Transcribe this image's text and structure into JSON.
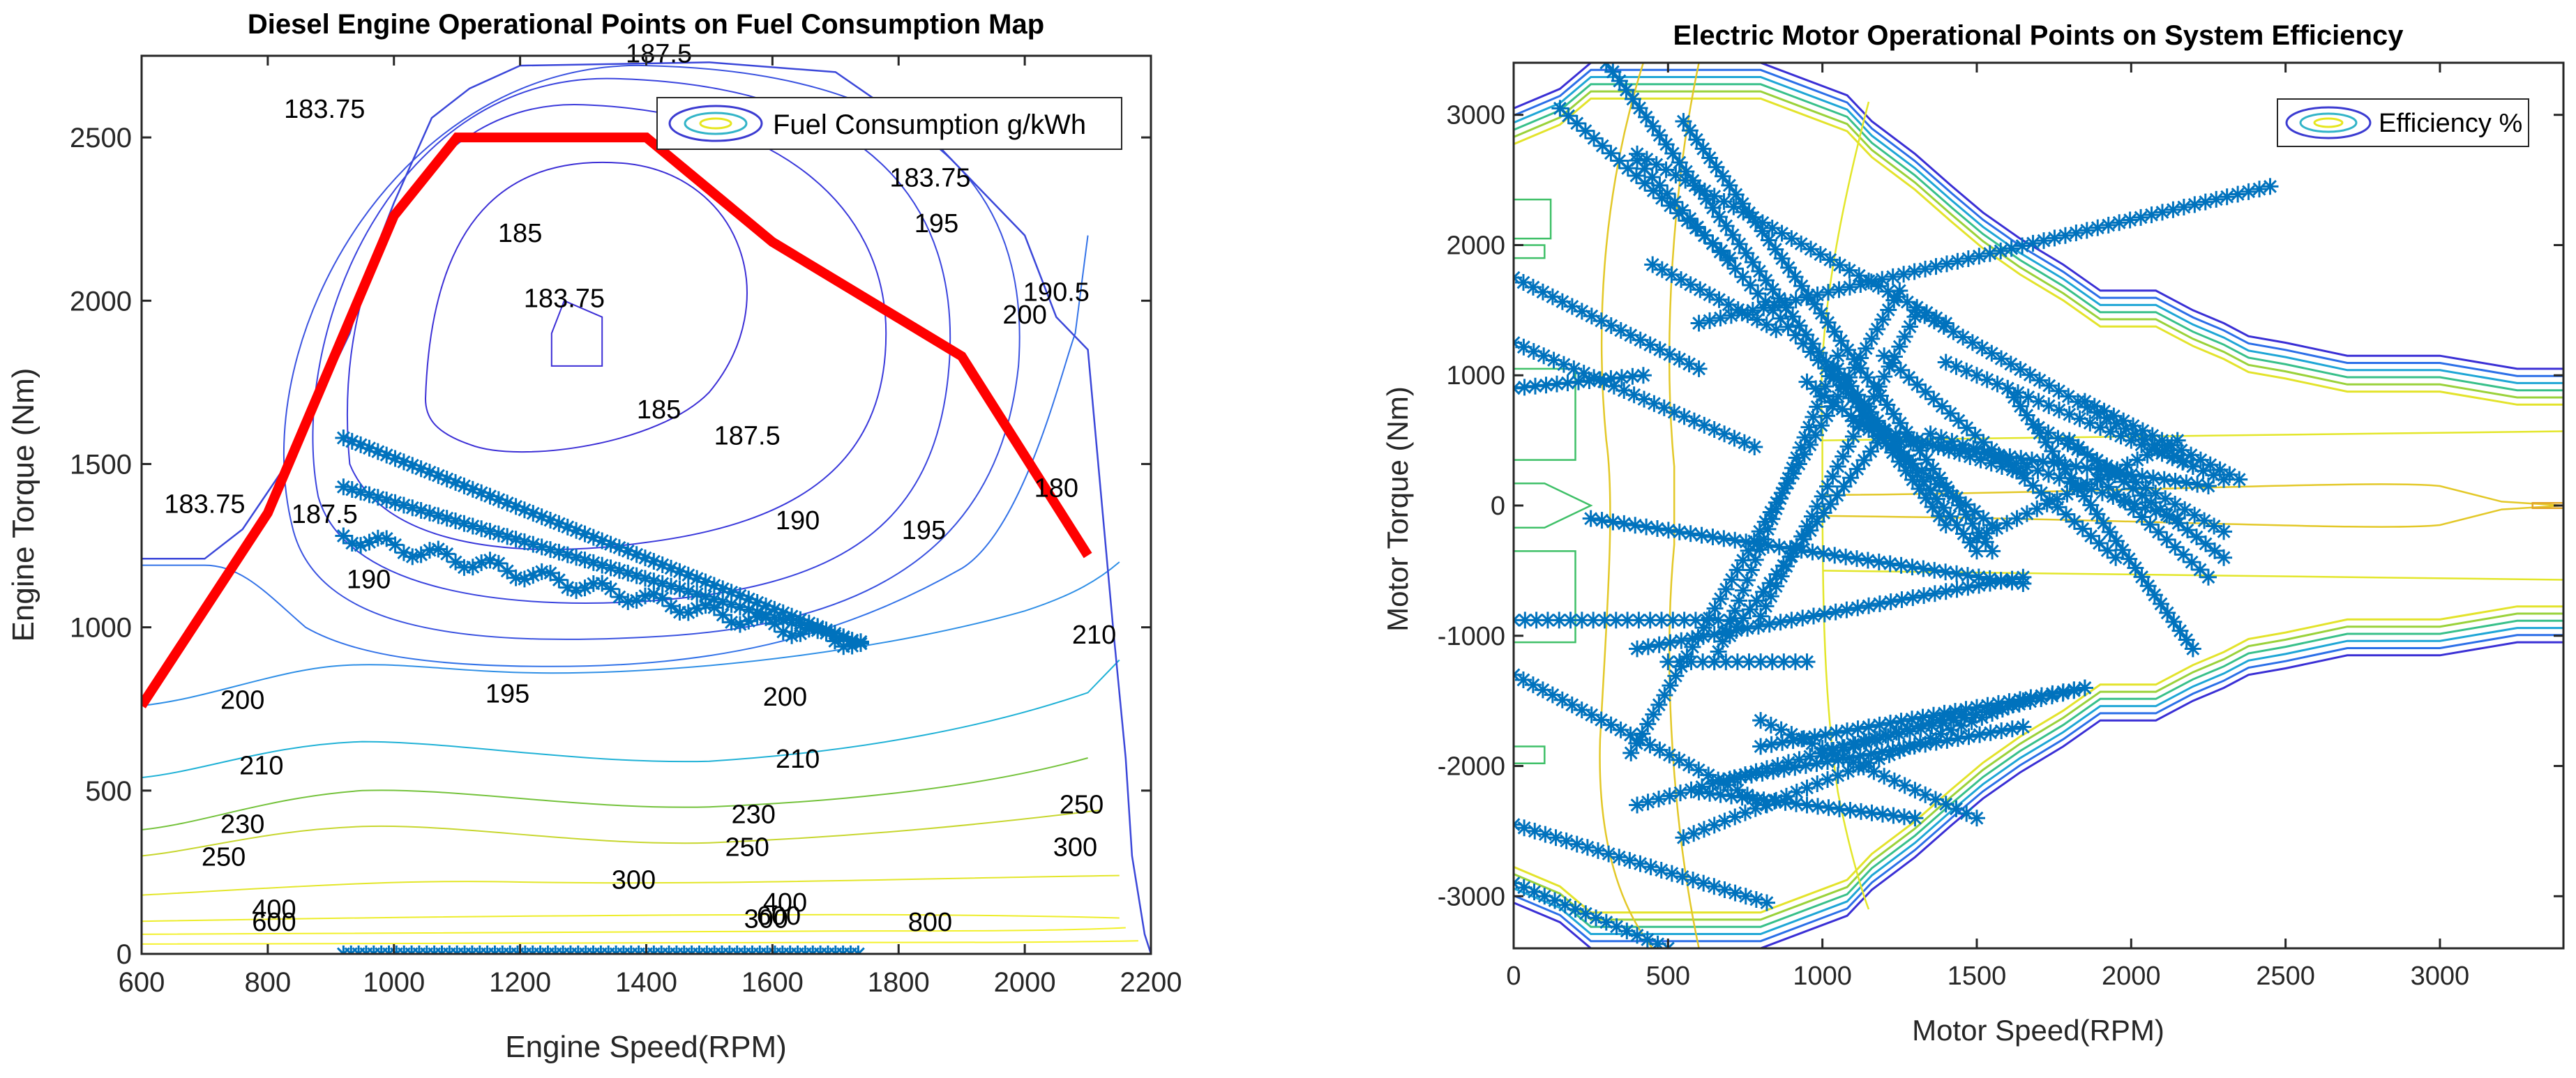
{
  "chart_data": [
    {
      "type": "contour",
      "title": "Diesel Engine Operational Points on Fuel Consumption Map",
      "xlabel": "Engine Speed(RPM)",
      "ylabel": "Engine Torque (Nm)",
      "xlim": [
        600,
        2200
      ],
      "ylim": [
        0,
        2750
      ],
      "xticks": [
        "600",
        "800",
        "1000",
        "1200",
        "1400",
        "1600",
        "1800",
        "2000",
        "2200"
      ],
      "yticks": [
        "0",
        "500",
        "1000",
        "1500",
        "2000",
        "2500"
      ],
      "legend": {
        "label": "Fuel Consumption g/kWh",
        "position": "top-right"
      },
      "contour_labels": [
        {
          "text": "187.5",
          "x": 1420,
          "y": 2730
        },
        {
          "text": "183.75",
          "x": 1270,
          "y": 1980
        },
        {
          "text": "185",
          "x": 1200,
          "y": 2180
        },
        {
          "text": "185",
          "x": 1420,
          "y": 1640
        },
        {
          "text": "187.5",
          "x": 1560,
          "y": 1560
        },
        {
          "text": "187.5",
          "x": 890,
          "y": 1320
        },
        {
          "text": "190",
          "x": 1640,
          "y": 1300
        },
        {
          "text": "190",
          "x": 960,
          "y": 1120
        },
        {
          "text": "195",
          "x": 1840,
          "y": 1270
        },
        {
          "text": "195",
          "x": 1860,
          "y": 2210
        },
        {
          "text": "195",
          "x": 1180,
          "y": 770
        },
        {
          "text": "200",
          "x": 2000,
          "y": 1930
        },
        {
          "text": "200",
          "x": 1620,
          "y": 760
        },
        {
          "text": "200",
          "x": 760,
          "y": 750
        },
        {
          "text": "210",
          "x": 1640,
          "y": 570
        },
        {
          "text": "210",
          "x": 790,
          "y": 550
        },
        {
          "text": "230",
          "x": 1570,
          "y": 400
        },
        {
          "text": "230",
          "x": 760,
          "y": 370
        },
        {
          "text": "250",
          "x": 1560,
          "y": 300
        },
        {
          "text": "250",
          "x": 730,
          "y": 270
        },
        {
          "text": "300",
          "x": 1380,
          "y": 200
        },
        {
          "text": "300",
          "x": 2080,
          "y": 300
        },
        {
          "text": "400",
          "x": 1620,
          "y": 130
        },
        {
          "text": "400",
          "x": 810,
          "y": 110
        },
        {
          "text": "600",
          "x": 810,
          "y": 70
        },
        {
          "text": "600",
          "x": 1610,
          "y": 90
        },
        {
          "text": "800",
          "x": 1850,
          "y": 70
        },
        {
          "text": "183.75",
          "x": 1850,
          "y": 2350
        },
        {
          "text": "183.75",
          "x": 890,
          "y": 2560
        },
        {
          "text": "183.75",
          "x": 700,
          "y": 1350
        },
        {
          "text": "190.5",
          "x": 2050,
          "y": 2000
        },
        {
          "text": "180",
          "x": 2050,
          "y": 1400
        },
        {
          "text": "300",
          "x": 1590,
          "y": 80
        },
        {
          "text": "250",
          "x": 2090,
          "y": 430
        },
        {
          "text": "210",
          "x": 2110,
          "y": 950
        }
      ],
      "max_torque_curve": {
        "x": [
          600,
          800,
          1000,
          1100,
          1200,
          1400,
          1600,
          1900,
          2100
        ],
        "y": [
          760,
          1350,
          2260,
          2500,
          2500,
          2500,
          2180,
          1830,
          1220
        ]
      },
      "operating_band": {
        "x": [
          920,
          1740
        ],
        "upper_y": [
          1580,
          950
        ],
        "lower_y": [
          1280,
          950
        ]
      },
      "zero_torque_points": {
        "x_start": 920,
        "x_end": 1740,
        "y": 0
      }
    },
    {
      "type": "contour",
      "title": "Electric Motor Operational Points on System Efficiency",
      "xlabel": "Motor Speed(RPM)",
      "ylabel": "Motor Torque (Nm)",
      "xlim": [
        0,
        3400
      ],
      "ylim": [
        -3400,
        3400
      ],
      "xticks": [
        "0",
        "500",
        "1000",
        "1500",
        "2000",
        "2500",
        "3000"
      ],
      "yticks": [
        "-3000",
        "-2000",
        "-1000",
        "0",
        "1000",
        "2000",
        "3000"
      ],
      "legend": {
        "label": "Efficiency %",
        "position": "top-right"
      },
      "torque_envelope": {
        "x": [
          0,
          150,
          250,
          800,
          1080,
          1160,
          1300,
          1420,
          1520,
          1640,
          1780,
          1900,
          2080,
          2200,
          2300,
          2380,
          2500,
          2700,
          3000,
          3250,
          3400
        ],
        "y": [
          3050,
          3200,
          3400,
          3400,
          3150,
          2950,
          2700,
          2450,
          2250,
          2050,
          1850,
          1650,
          1650,
          1500,
          1400,
          1300,
          1250,
          1150,
          1150,
          1050,
          1050
        ]
      },
      "operating_segments": [
        {
          "x": [
            0,
            600
          ],
          "y": [
            1750,
            1050
          ]
        },
        {
          "x": [
            0,
            780
          ],
          "y": [
            1250,
            450
          ]
        },
        {
          "x": [
            0,
            420
          ],
          "y": [
            900,
            1000
          ]
        },
        {
          "x": [
            0,
            700
          ],
          "y": [
            -880,
            -880
          ]
        },
        {
          "x": [
            0,
            820
          ],
          "y": [
            -1300,
            -2300
          ]
        },
        {
          "x": [
            0,
            820
          ],
          "y": [
            -2450,
            -3050
          ]
        },
        {
          "x": [
            0,
            500
          ],
          "y": [
            -2900,
            -3400
          ]
        },
        {
          "x": [
            150,
            700
          ],
          "y": [
            3050,
            1900
          ]
        },
        {
          "x": [
            300,
            1400
          ],
          "y": [
            3400,
            -150
          ]
        },
        {
          "x": [
            400,
            1280
          ],
          "y": [
            2650,
            350
          ]
        },
        {
          "x": [
            450,
            850
          ],
          "y": [
            1850,
            1350
          ]
        },
        {
          "x": [
            500,
            950
          ],
          "y": [
            -1200,
            -1200
          ]
        },
        {
          "x": [
            650,
            1050
          ],
          "y": [
            -1200,
            1150
          ]
        },
        {
          "x": [
            700,
            1200
          ],
          "y": [
            -1000,
            550
          ]
        },
        {
          "x": [
            380,
            1250
          ],
          "y": [
            -1900,
            1650
          ]
        },
        {
          "x": [
            400,
            1400
          ],
          "y": [
            2700,
            1400
          ]
        },
        {
          "x": [
            550,
            1550
          ],
          "y": [
            2950,
            -350
          ]
        },
        {
          "x": [
            800,
            1300
          ],
          "y": [
            -850,
            1450
          ]
        },
        {
          "x": [
            600,
            2450
          ],
          "y": [
            1400,
            2450
          ]
        },
        {
          "x": [
            250,
            1650
          ],
          "y": [
            -100,
            -600
          ]
        },
        {
          "x": [
            400,
            1650
          ],
          "y": [
            -1100,
            -550
          ]
        },
        {
          "x": [
            950,
            1550
          ],
          "y": [
            950,
            -150
          ]
        },
        {
          "x": [
            1050,
            1500
          ],
          "y": [
            1050,
            -350
          ]
        },
        {
          "x": [
            1100,
            1650
          ],
          "y": [
            650,
            250
          ]
        },
        {
          "x": [
            1200,
            1950
          ],
          "y": [
            1150,
            -400
          ]
        },
        {
          "x": [
            1300,
            2200
          ],
          "y": [
            1500,
            300
          ]
        },
        {
          "x": [
            1350,
            2150
          ],
          "y": [
            550,
            -100
          ]
        },
        {
          "x": [
            1400,
            2300
          ],
          "y": [
            1100,
            200
          ]
        },
        {
          "x": [
            1500,
            2150
          ],
          "y": [
            -250,
            500
          ]
        },
        {
          "x": [
            1600,
            2200
          ],
          "y": [
            900,
            -1100
          ]
        },
        {
          "x": [
            1700,
            2300
          ],
          "y": [
            600,
            -200
          ]
        },
        {
          "x": [
            1800,
            2300
          ],
          "y": [
            500,
            -400
          ]
        },
        {
          "x": [
            1850,
            2350
          ],
          "y": [
            800,
            200
          ]
        },
        {
          "x": [
            1900,
            2250
          ],
          "y": [
            200,
            -550
          ]
        },
        {
          "x": [
            1250,
            2250
          ],
          "y": [
            500,
            150
          ]
        },
        {
          "x": [
            800,
            1850
          ],
          "y": [
            -1850,
            -1400
          ]
        },
        {
          "x": [
            1000,
            1850
          ],
          "y": [
            -1900,
            -1400
          ]
        },
        {
          "x": [
            550,
            1650
          ],
          "y": [
            -2550,
            -1500
          ]
        },
        {
          "x": [
            400,
            1450
          ],
          "y": [
            -2300,
            -1600
          ]
        },
        {
          "x": [
            700,
            1650
          ],
          "y": [
            -2100,
            -1700
          ]
        },
        {
          "x": [
            800,
            1500
          ],
          "y": [
            -1650,
            -2400
          ]
        },
        {
          "x": [
            600,
            1300
          ],
          "y": [
            -2200,
            -2400
          ]
        }
      ]
    }
  ]
}
